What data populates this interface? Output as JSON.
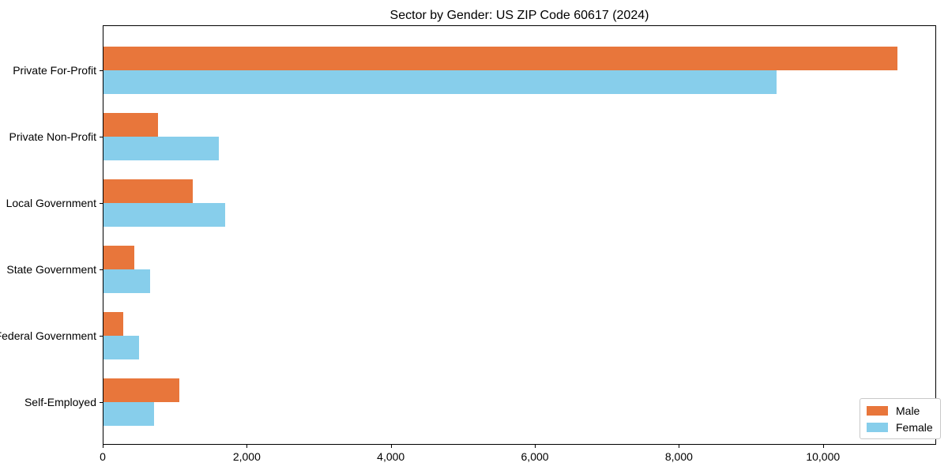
{
  "chart_data": {
    "type": "bar",
    "orientation": "horizontal",
    "title": "Sector by Gender: US ZIP Code 60617 (2024)",
    "categories": [
      "Private For-Profit",
      "Private Non-Profit",
      "Local Government",
      "State Government",
      "Federal Government",
      "Self-Employed"
    ],
    "series": [
      {
        "name": "Male",
        "color": "#E8763B",
        "values": [
          11020,
          760,
          1240,
          430,
          275,
          1050
        ]
      },
      {
        "name": "Female",
        "color": "#87CEEB",
        "values": [
          9340,
          1600,
          1690,
          650,
          490,
          700
        ]
      }
    ],
    "xlabel": "",
    "ylabel": "",
    "xlim": [
      0,
      11560
    ],
    "xticks": [
      0,
      2000,
      4000,
      6000,
      8000,
      10000
    ],
    "xtick_labels": [
      "0",
      "2,000",
      "4,000",
      "6,000",
      "8,000",
      "10,000"
    ],
    "legend_position": "lower right",
    "legend_labels": [
      "Male",
      "Female"
    ],
    "grid": false,
    "axis_color": "#000000",
    "background_color": "#ffffff"
  }
}
